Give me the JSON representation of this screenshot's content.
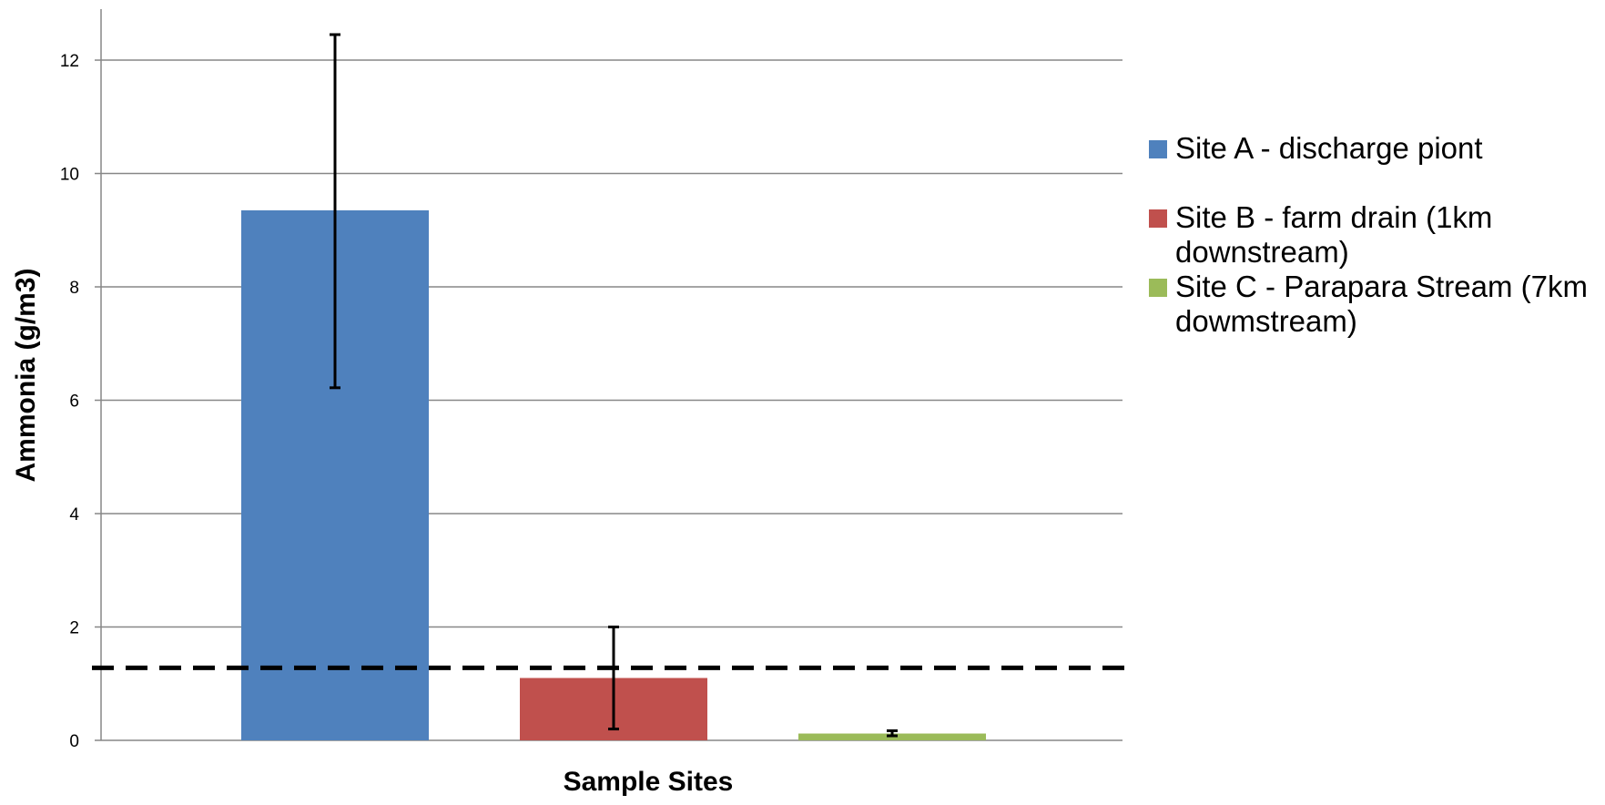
{
  "chart_data": {
    "type": "bar",
    "title": "",
    "xlabel": "Sample Sites",
    "ylabel": "Ammonia (g/m3)",
    "ylim": [
      0,
      12.9
    ],
    "yticks": [
      "0",
      "2",
      "4",
      "6",
      "8",
      "10",
      "12"
    ],
    "grid": true,
    "legend_position": "right",
    "series": [
      {
        "name": "Site A - discharge piont",
        "color": "#4F81BD",
        "value": 9.35,
        "error_low": 6.22,
        "error_high": 12.45
      },
      {
        "name": "Site B - farm drain (1km downstream)",
        "color": "#C0504D",
        "value": 1.1,
        "error_low": 0.2,
        "error_high": 2.0
      },
      {
        "name": "Site C - Parapara Stream (7km dowmstream)",
        "color": "#9BBB59",
        "value": 0.12,
        "error_low": 0.08,
        "error_high": 0.17
      }
    ],
    "reference_line": {
      "value": 1.28,
      "style": "dashed",
      "color": "#000000"
    }
  }
}
